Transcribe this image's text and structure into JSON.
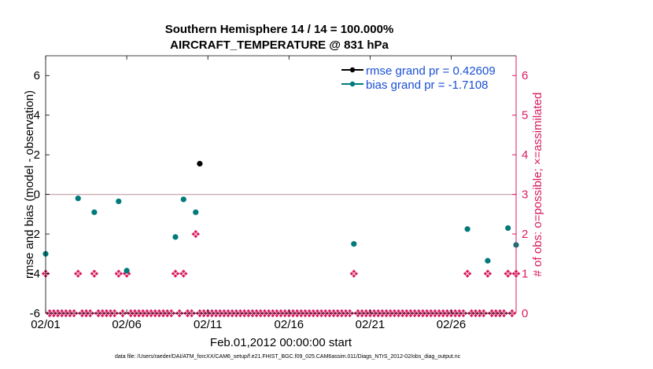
{
  "chart_data": {
    "type": "scatter",
    "title": "Southern Hemisphere 14 / 14 = 100.000%",
    "subtitle": "AIRCRAFT_TEMPERATURE @ 831 hPa",
    "xlabel": "Feb.01,2012 00:00:00 start",
    "ylabel": "rmse and bias (model - observation)",
    "y2label": "# of obs: o=possible; ×=assimilated",
    "x_ticks": [
      "02/01",
      "02/06",
      "02/11",
      "02/16",
      "02/21",
      "02/26"
    ],
    "x_tick_days": [
      1,
      6,
      11,
      16,
      21,
      26
    ],
    "xlim": [
      1,
      30
    ],
    "ylim": [
      -6,
      7
    ],
    "y_ticks": [
      "-6",
      "-4",
      "-2",
      "0",
      "2",
      "4",
      "6"
    ],
    "y2lim": [
      0,
      6.5
    ],
    "y2_ticks": [
      "0",
      "1",
      "2",
      "3",
      "4",
      "5",
      "6"
    ],
    "legend_position": "top-right",
    "zero_line": 0,
    "series": [
      {
        "name": "rmse grand pr = 0.42609",
        "color": "#000000",
        "points": [
          [
            10.5,
            1.55
          ]
        ]
      },
      {
        "name": "bias grand pr = -1.7108",
        "color": "#007a7a",
        "points": [
          [
            1.0,
            -3.0
          ],
          [
            3.0,
            -0.2
          ],
          [
            4.0,
            -0.9
          ],
          [
            5.5,
            -0.35
          ],
          [
            6.0,
            -3.85
          ],
          [
            9.0,
            -2.15
          ],
          [
            9.5,
            -0.25
          ],
          [
            10.25,
            -0.9
          ],
          [
            20.0,
            -2.5
          ],
          [
            27.0,
            -1.75
          ],
          [
            28.25,
            -3.35
          ],
          [
            29.5,
            -1.7
          ],
          [
            30.0,
            -2.55
          ]
        ]
      },
      {
        "name": "obs possible/assimilated",
        "axis": "right",
        "color": "#d81b60",
        "points": [
          [
            1.0,
            1
          ],
          [
            3.0,
            1
          ],
          [
            4.0,
            1
          ],
          [
            5.5,
            1
          ],
          [
            6.0,
            1
          ],
          [
            9.0,
            1
          ],
          [
            9.5,
            1
          ],
          [
            10.25,
            2
          ],
          [
            20.0,
            1
          ],
          [
            27.0,
            1
          ],
          [
            28.25,
            1
          ],
          [
            29.5,
            1
          ],
          [
            30.0,
            1
          ]
        ],
        "zero_points_step": 0.25
      }
    ]
  },
  "footer": "data file: /Users/raeder/DAI/ATM_forcXX/CAM6_setup/f.e21.FHIST_BGC.f09_025.CAM6assim.011/Diags_NTrS_2012-02/obs_diag_output.nc"
}
